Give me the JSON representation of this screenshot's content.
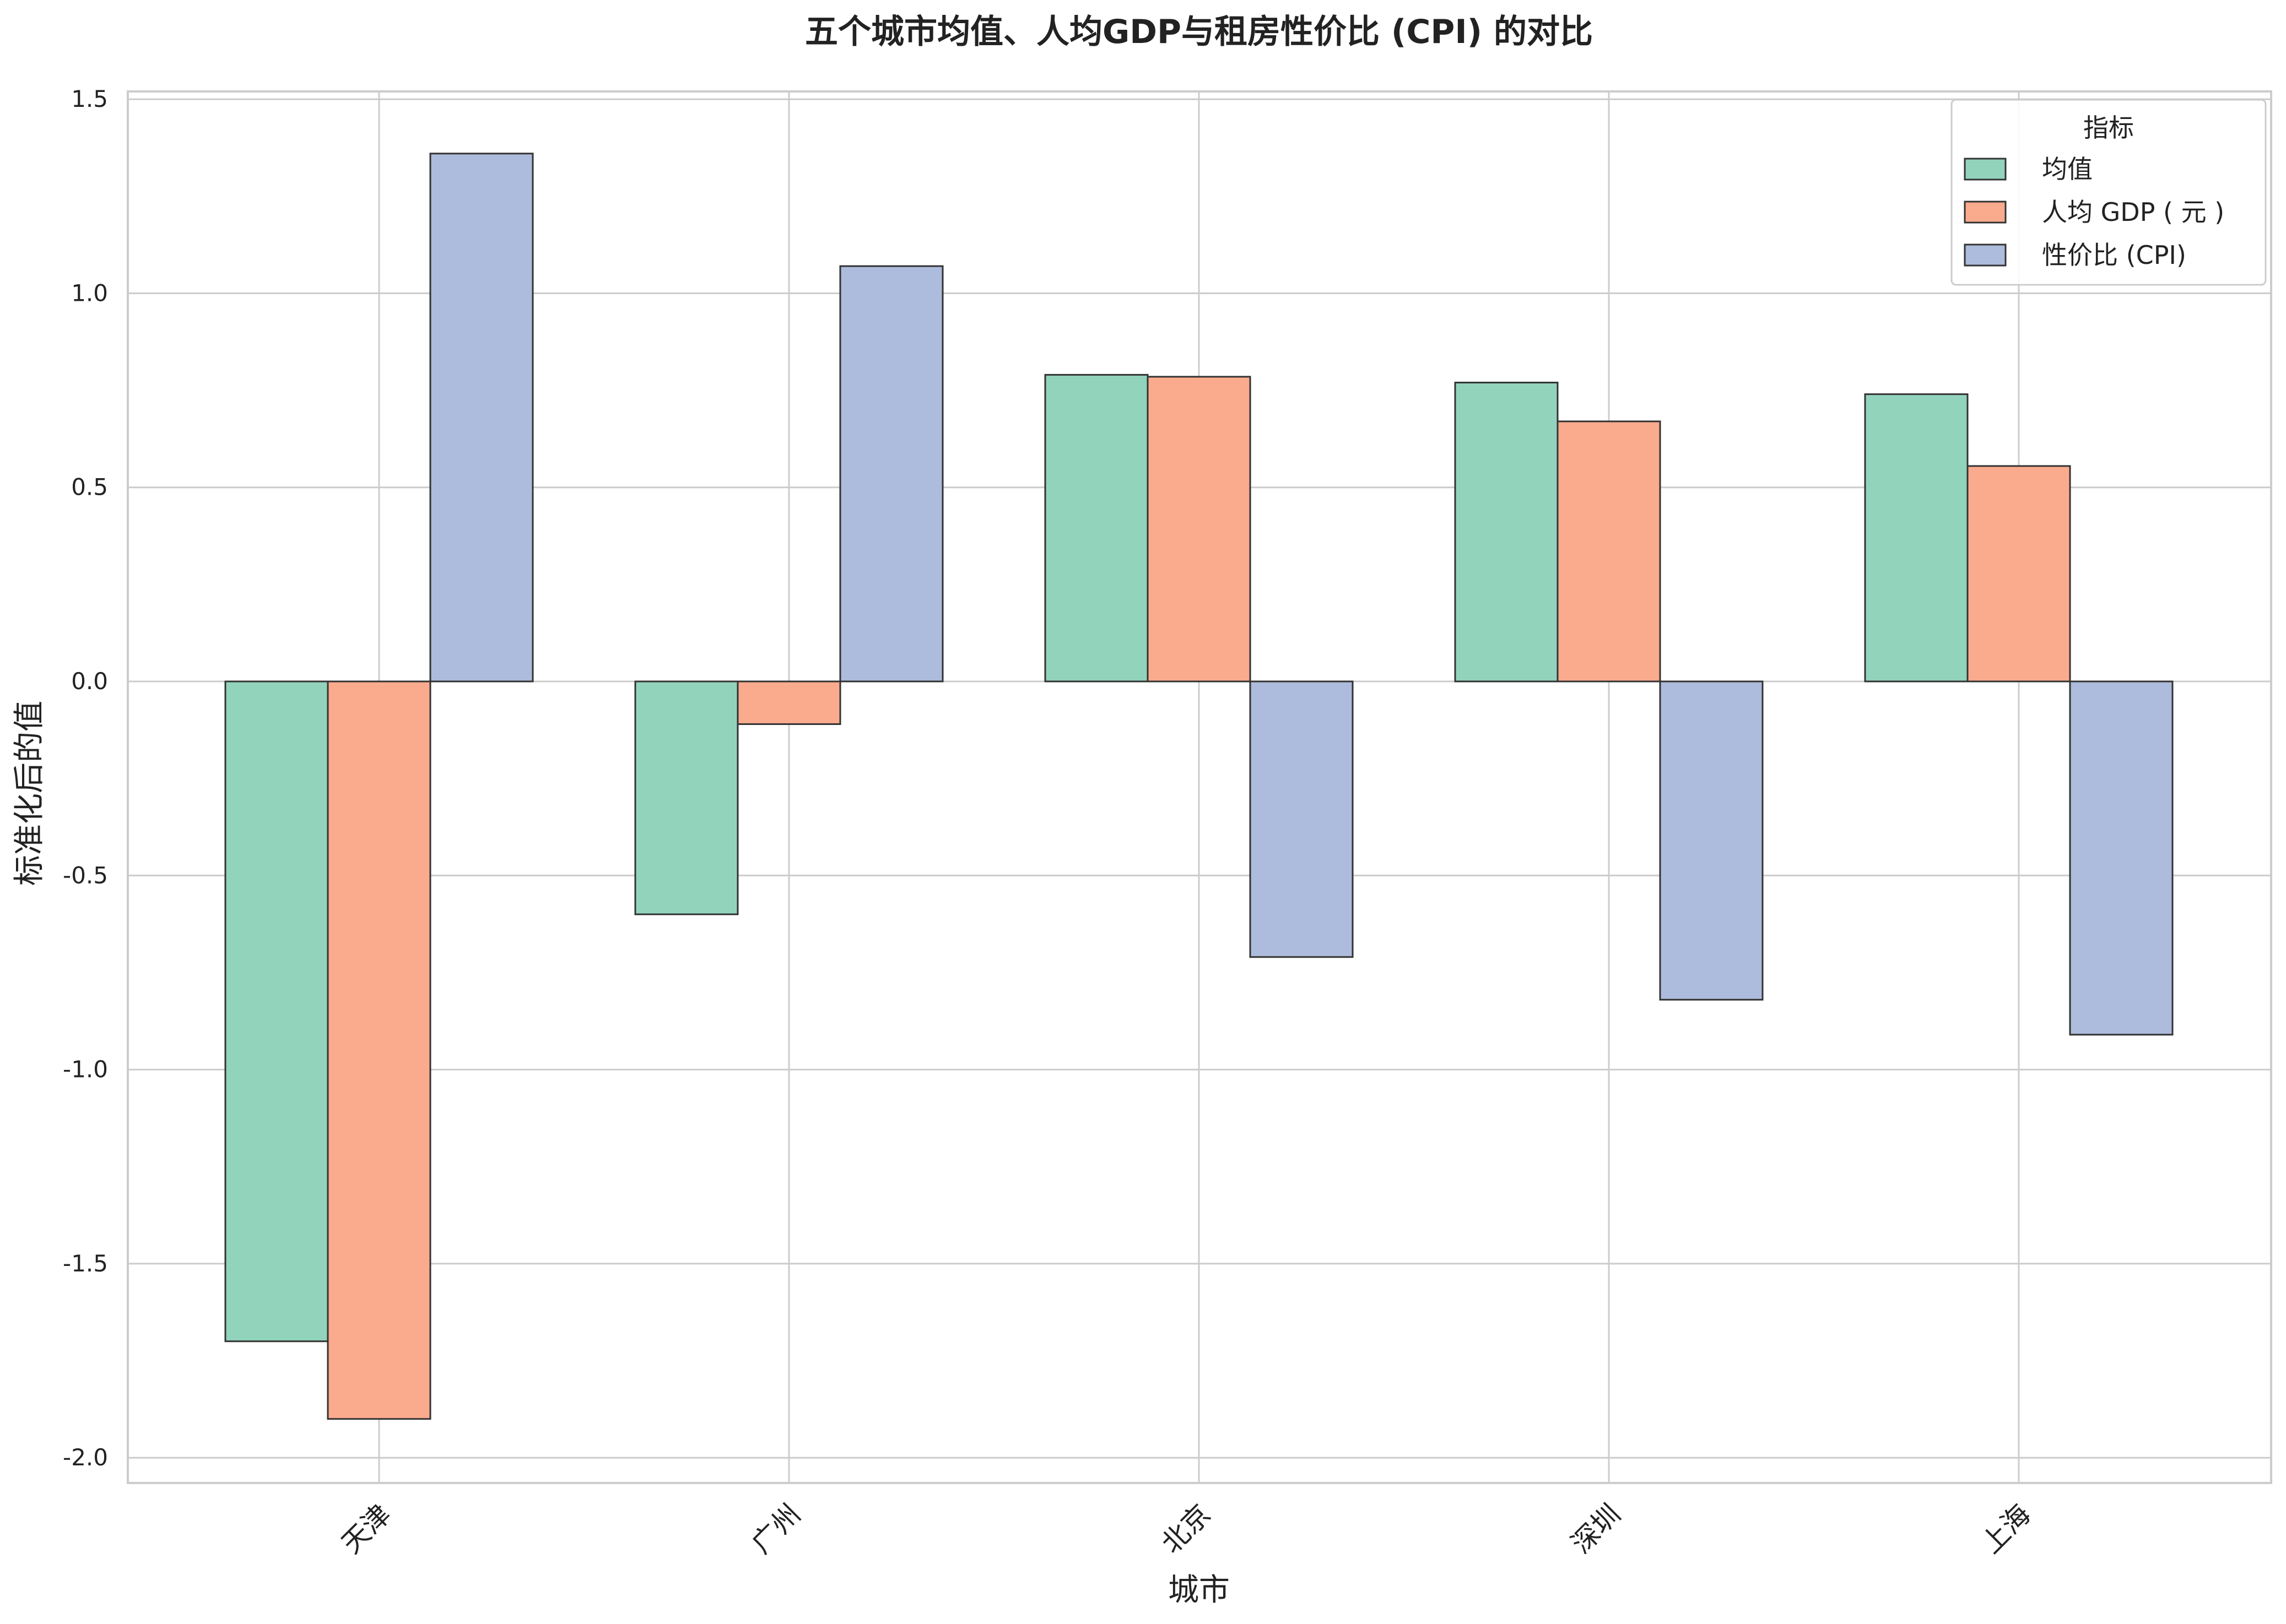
{
  "chart_data": {
    "type": "bar",
    "title": "五个城市均值、人均GDP与租房性价比 (CPI) 的对比",
    "xlabel": "城市",
    "ylabel": "标准化后的值",
    "categories": [
      "天津",
      "广州",
      "北京",
      "深圳",
      "上海"
    ],
    "series": [
      {
        "name": "均值",
        "color": "#92d3bc",
        "values": [
          -1.7,
          -0.6,
          0.79,
          0.77,
          0.74
        ]
      },
      {
        "name": "人均 GDP ( 元 )",
        "color": "#fbab8d",
        "values": [
          -1.9,
          -0.11,
          0.785,
          0.67,
          0.555
        ]
      },
      {
        "name": "性价比 (CPI)",
        "color": "#adbbdc",
        "values": [
          1.36,
          1.07,
          -0.71,
          -0.82,
          -0.91
        ]
      }
    ],
    "ylim": [
      -2.065,
      1.52
    ],
    "yticks": [
      "1.5",
      "1.0",
      "0.5",
      "0.0",
      "-0.5",
      "-1.0",
      "-1.5",
      "-2.0"
    ],
    "ytick_values": [
      1.5,
      1.0,
      0.5,
      0.0,
      -0.5,
      -1.0,
      -1.5,
      -2.0
    ],
    "grid": true,
    "legend": {
      "title": "指标",
      "placement": "top-right"
    },
    "xtick_rotation_deg": 45
  }
}
